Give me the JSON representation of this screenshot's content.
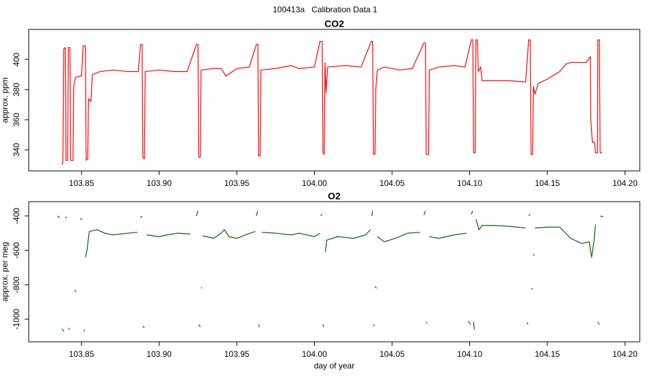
{
  "title": "100413a   Calibration Data 1",
  "chart_data": [
    {
      "type": "line",
      "title": "CO2",
      "ylabel": "approx. ppm",
      "xlim": [
        103.816,
        104.2095
      ],
      "ylim": [
        326,
        420
      ],
      "xticks": [
        103.85,
        {
          "value": 103.9,
          "label": "103.90"
        },
        103.95,
        {
          "value": 104.0,
          "label": "104.00"
        },
        104.05,
        {
          "value": 104.1,
          "label": "104.10"
        },
        104.15,
        {
          "value": 104.2,
          "label": "104.20"
        }
      ],
      "yticks": [
        340,
        360,
        380,
        400
      ],
      "series": [
        {
          "color": "#ff0000",
          "x": [
            103.8375,
            103.838,
            103.8385,
            103.8395,
            103.84,
            103.841,
            103.8415,
            103.8425,
            103.843,
            103.8445,
            103.845,
            103.846,
            103.849,
            103.85,
            103.851,
            103.8525,
            103.853,
            103.854,
            103.8545,
            103.856,
            103.857,
            103.862,
            103.87,
            103.88,
            103.8865,
            103.888,
            103.889,
            103.8895,
            103.8905,
            103.891,
            103.9,
            103.91,
            103.918,
            103.924,
            103.925,
            103.9255,
            103.9265,
            103.927,
            103.935,
            103.94,
            103.943,
            103.95,
            103.958,
            103.9626,
            103.9636,
            103.964,
            103.965,
            103.9655,
            103.975,
            103.985,
            103.99,
            104.0,
            104.0035,
            104.005,
            104.0055,
            104.0063,
            104.0068,
            104.0075,
            104.0085,
            104.02,
            104.03,
            104.0366,
            104.0375,
            104.038,
            104.039,
            104.0395,
            104.0405,
            104.045,
            104.055,
            104.063,
            104.0705,
            104.0715,
            104.072,
            104.0735,
            104.074,
            104.08,
            104.09,
            104.097,
            104.101,
            104.102,
            104.1025,
            104.1035,
            104.104,
            104.105,
            104.1055,
            104.107,
            104.108,
            104.115,
            104.125,
            104.136,
            104.138,
            104.139,
            104.1395,
            104.1405,
            104.141,
            104.142,
            104.144,
            104.15,
            104.158,
            104.162,
            104.165,
            104.175,
            104.1777,
            104.178,
            104.179,
            104.1805,
            104.181,
            104.1823,
            104.1825,
            104.1835,
            104.184,
            104.1855
          ],
          "values": [
            330,
            332,
            407,
            408,
            333,
            333,
            408,
            408,
            333,
            333,
            382,
            388,
            389,
            389,
            409,
            409,
            333,
            334,
            374,
            372,
            390,
            392,
            393,
            392,
            392,
            410,
            410,
            335,
            334,
            392,
            393,
            392,
            392,
            410,
            410,
            335,
            335,
            393,
            394,
            394,
            389,
            394,
            395,
            410,
            410,
            336,
            336,
            393,
            394,
            396,
            394,
            395,
            412,
            412,
            338,
            337,
            398,
            378,
            395,
            396,
            395,
            412,
            412,
            337,
            337,
            380,
            393,
            395,
            393,
            394,
            411,
            411,
            337,
            337,
            393,
            395,
            396,
            395,
            413,
            413,
            338,
            338,
            413,
            413,
            392,
            395,
            386,
            386,
            386,
            385,
            413,
            413,
            337,
            337,
            382,
            377,
            384,
            387,
            392,
            397,
            398,
            398,
            402,
            360,
            345,
            345,
            338,
            338,
            413,
            413,
            338,
            338
          ]
        }
      ]
    },
    {
      "type": "line",
      "title": "O2",
      "ylabel": "approx. per meg",
      "xlabel": "day of year",
      "xlim": [
        103.816,
        104.2095
      ],
      "ylim": [
        -1131,
        -317
      ],
      "xticks": [
        103.85,
        {
          "value": 103.9,
          "label": "103.90"
        },
        103.95,
        {
          "value": 104.0,
          "label": "104.00"
        },
        104.05,
        {
          "value": 104.1,
          "label": "104.10"
        },
        104.15,
        {
          "value": 104.2,
          "label": "104.20"
        }
      ],
      "yticks": [
        -1000,
        -800,
        -600,
        -400
      ],
      "series": [
        {
          "color": "#006400",
          "x": [
            103.8345,
            103.836,
            null,
            103.8375,
            103.8385,
            null,
            103.8395,
            103.8405,
            null,
            103.8415,
            103.8425,
            null,
            103.8455,
            103.8465,
            null,
            103.849,
            103.8505,
            null,
            103.8515,
            103.852,
            null,
            103.8525,
            103.8535,
            103.855,
            103.86,
            103.865,
            103.87,
            103.88,
            103.886,
            null,
            103.888,
            103.889,
            null,
            103.8895,
            103.8905,
            null,
            103.892,
            103.9,
            103.905,
            103.912,
            103.92,
            null,
            103.924,
            103.925,
            null,
            103.9255,
            103.9265,
            null,
            103.927,
            103.9275,
            null,
            103.928,
            103.935,
            103.94,
            103.942,
            103.945,
            103.95,
            103.957,
            103.962,
            null,
            103.9625,
            103.9635,
            null,
            103.964,
            103.9645,
            null,
            103.966,
            103.975,
            103.985,
            103.99,
            104.0,
            104.0035,
            null,
            104.004,
            104.005,
            null,
            104.0055,
            104.006,
            null,
            104.007,
            104.008,
            104.015,
            104.025,
            104.033,
            104.036,
            null,
            104.037,
            104.0375,
            null,
            104.038,
            104.0385,
            null,
            104.039,
            104.04,
            null,
            104.0405,
            104.045,
            104.052,
            104.06,
            104.068,
            null,
            104.0705,
            104.0715,
            null,
            104.072,
            104.0725,
            null,
            104.074,
            104.08,
            104.09,
            104.098,
            null,
            104.099,
            104.1005,
            null,
            104.101,
            104.102,
            null,
            104.1025,
            104.103,
            null,
            104.104,
            104.106,
            104.108,
            104.115,
            104.125,
            104.136,
            null,
            104.137,
            104.1375,
            null,
            104.138,
            104.139,
            null,
            104.1395,
            104.1405,
            null,
            104.141,
            104.1415,
            null,
            104.142,
            104.15,
            104.158,
            104.165,
            104.172,
            104.177,
            104.1785,
            104.18,
            104.181,
            null,
            104.1825,
            104.1835,
            null,
            104.184,
            104.186
          ],
          "values": [
            -400,
            -410,
            null,
            -1055,
            -1070,
            null,
            -405,
            -412,
            null,
            -1050,
            -1060,
            null,
            -830,
            -840,
            null,
            -415,
            -420,
            null,
            -1060,
            -1070,
            null,
            -640,
            -600,
            -490,
            -480,
            -500,
            -510,
            -500,
            -495,
            null,
            -410,
            -400,
            null,
            -1040,
            -1050,
            null,
            -510,
            -520,
            -510,
            -500,
            -505,
            null,
            -400,
            -370,
            null,
            -1030,
            -1045,
            null,
            -820,
            -815,
            null,
            -515,
            -530,
            -500,
            -480,
            -520,
            -530,
            -505,
            -490,
            null,
            -400,
            -370,
            null,
            -1030,
            -1045,
            null,
            -495,
            -500,
            -510,
            -500,
            -520,
            -500,
            null,
            -400,
            -390,
            null,
            -1030,
            -1045,
            null,
            -610,
            -540,
            -520,
            -530,
            -510,
            -480,
            null,
            -400,
            -370,
            null,
            -1030,
            -1040,
            null,
            -810,
            -820,
            null,
            -520,
            -550,
            -530,
            -500,
            -495,
            null,
            -395,
            -370,
            null,
            -1015,
            -1025,
            null,
            -520,
            -530,
            -510,
            -500,
            null,
            -1010,
            -1030,
            null,
            -390,
            -370,
            null,
            -1015,
            -1060,
            null,
            -420,
            -480,
            -455,
            -455,
            -460,
            -470,
            null,
            -1020,
            -1030,
            null,
            -400,
            -390,
            null,
            -820,
            -825,
            null,
            -620,
            -630,
            null,
            -470,
            -465,
            -465,
            -530,
            -560,
            -550,
            -640,
            -550,
            -450,
            null,
            -1015,
            -1030,
            null,
            -400,
            -405
          ]
        }
      ]
    }
  ]
}
